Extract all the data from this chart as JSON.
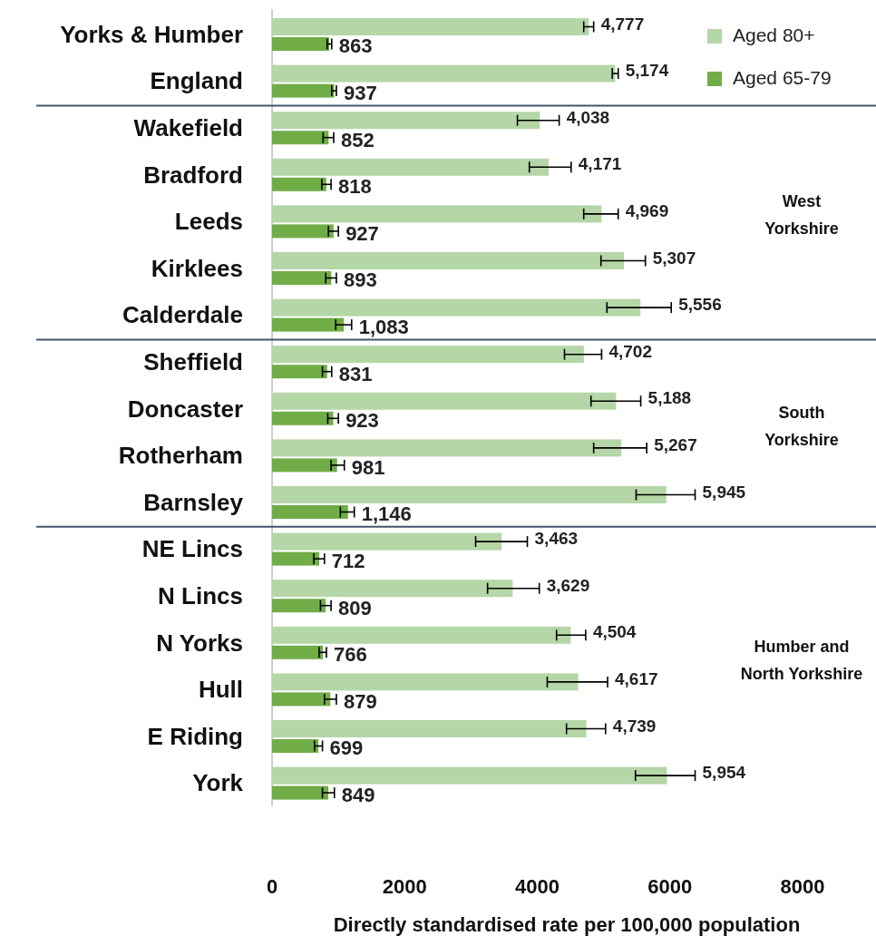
{
  "chart_data": {
    "type": "bar",
    "orientation": "horizontal",
    "categories": [
      "Yorks & Humber",
      "England",
      "Wakefield",
      "Bradford",
      "Leeds",
      "Kirklees",
      "Calderdale",
      "Sheffield",
      "Doncaster",
      "Rotherham",
      "Barnsley",
      "NE Lincs",
      "N Lincs",
      "N Yorks",
      "Hull",
      "E Riding",
      "York"
    ],
    "series": [
      {
        "name": "Aged 80+",
        "color": "#b5d6a6",
        "values": [
          4777,
          5174,
          4038,
          4171,
          4969,
          5307,
          5556,
          4702,
          5188,
          5267,
          5945,
          3463,
          3629,
          4504,
          4617,
          4739,
          5954
        ],
        "value_labels": [
          "4,777",
          "5,174",
          "4,038",
          "4,171",
          "4,969",
          "5,307",
          "5,556",
          "4,702",
          "5,188",
          "5,267",
          "5,945",
          "3,463",
          "3,629",
          "4,504",
          "4,617",
          "4,739",
          "5,954"
        ],
        "errors": [
          [
            4700,
            4850
          ],
          [
            5130,
            5220
          ],
          [
            3700,
            4330
          ],
          [
            3880,
            4510
          ],
          [
            4700,
            5220
          ],
          [
            4960,
            5630
          ],
          [
            5050,
            6020
          ],
          [
            4410,
            4970
          ],
          [
            4810,
            5560
          ],
          [
            4850,
            5650
          ],
          [
            5490,
            6380
          ],
          [
            3070,
            3850
          ],
          [
            3250,
            4030
          ],
          [
            4290,
            4730
          ],
          [
            4150,
            5060
          ],
          [
            4440,
            5030
          ],
          [
            5480,
            6380
          ]
        ]
      },
      {
        "name": "Aged 65-79",
        "color": "#70ad47",
        "values": [
          863,
          937,
          852,
          818,
          927,
          893,
          1083,
          831,
          923,
          981,
          1146,
          712,
          809,
          766,
          879,
          699,
          849
        ],
        "value_labels": [
          "863",
          "937",
          "852",
          "818",
          "927",
          "893",
          "1,083",
          "831",
          "923",
          "981",
          "1,146",
          "712",
          "809",
          "766",
          "879",
          "699",
          "849"
        ],
        "errors": [
          [
            830,
            900
          ],
          [
            900,
            970
          ],
          [
            770,
            930
          ],
          [
            750,
            890
          ],
          [
            850,
            1000
          ],
          [
            810,
            970
          ],
          [
            960,
            1200
          ],
          [
            760,
            900
          ],
          [
            840,
            1000
          ],
          [
            890,
            1090
          ],
          [
            1030,
            1240
          ],
          [
            630,
            790
          ],
          [
            730,
            890
          ],
          [
            710,
            820
          ],
          [
            790,
            970
          ],
          [
            640,
            760
          ],
          [
            760,
            940
          ]
        ]
      }
    ],
    "xlim": [
      0,
      8000
    ],
    "xticks": [
      0,
      2000,
      4000,
      6000,
      8000
    ],
    "xlabel": "Directly standardised rate per 100,000 population",
    "legend": "top right",
    "grid": false,
    "annotations": [
      "West Yorkshire",
      "South Yorkshire",
      "Humber and North Yorkshire"
    ]
  }
}
